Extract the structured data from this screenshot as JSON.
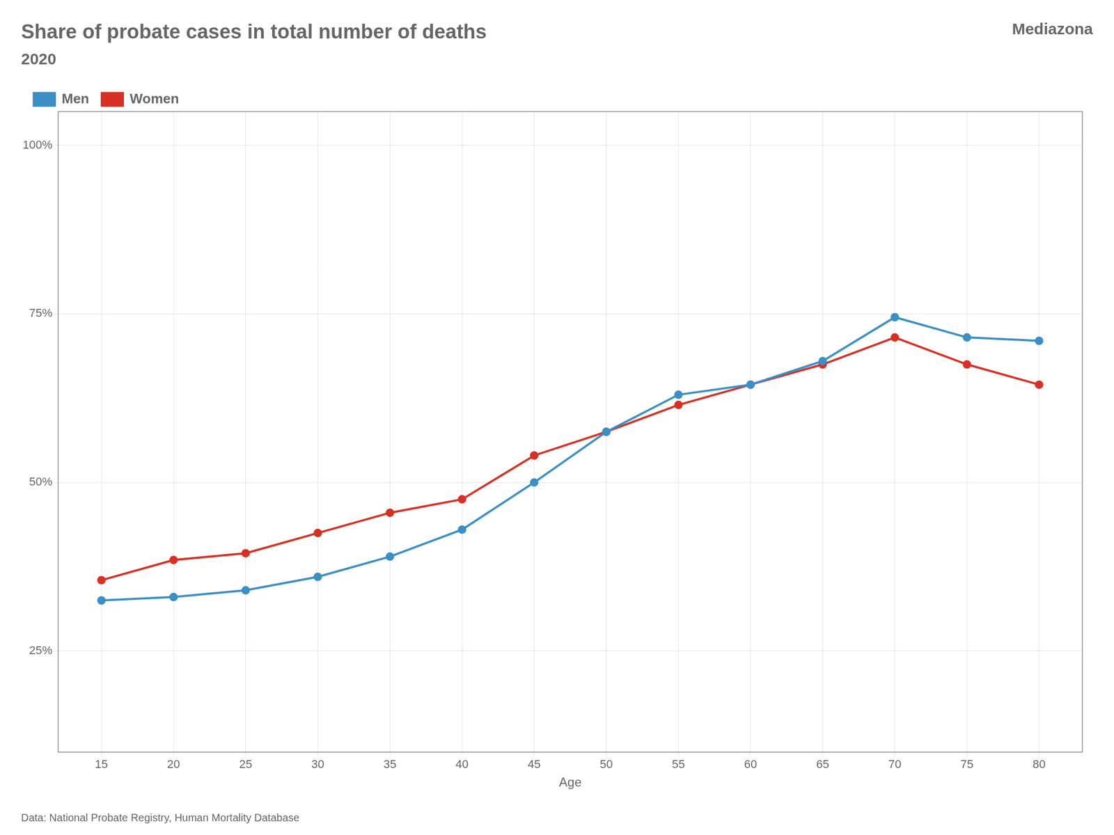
{
  "chart_data": {
    "type": "line",
    "title": "Share of probate cases in total number of deaths",
    "subtitle": "2020",
    "annotations": [
      "Mediazona",
      "Data: National Probate Registry, Human Mortality Database"
    ],
    "x_label": "Age",
    "x": [
      15,
      20,
      25,
      30,
      35,
      40,
      45,
      50,
      55,
      60,
      65,
      70,
      75,
      80
    ],
    "series": [
      {
        "name": "Men",
        "color": "#3b8fc4",
        "values": [
          0.325,
          0.33,
          0.34,
          0.36,
          0.39,
          0.43,
          0.5,
          0.575,
          0.63,
          0.645,
          0.68,
          0.745,
          0.715,
          0.71
        ]
      },
      {
        "name": "Women",
        "color": "#d93025",
        "values": [
          0.355,
          0.385,
          0.395,
          0.425,
          0.455,
          0.475,
          0.54,
          0.575,
          0.615,
          0.645,
          0.675,
          0.715,
          0.675,
          0.645
        ]
      }
    ],
    "xlim": [
      12,
      83
    ],
    "xticks": [
      15,
      20,
      25,
      30,
      35,
      40,
      45,
      50,
      55,
      60,
      65,
      70,
      75,
      80
    ],
    "ylim": [
      0.1,
      1.05
    ],
    "yticks": [
      {
        "value": 0.25,
        "label": "25%"
      },
      {
        "value": 0.5,
        "label": "50%"
      },
      {
        "value": 0.75,
        "label": "75%"
      },
      {
        "value": 1.0,
        "label": "100%"
      }
    ],
    "grid": true,
    "legend": "upper left",
    "marker": "circle"
  }
}
